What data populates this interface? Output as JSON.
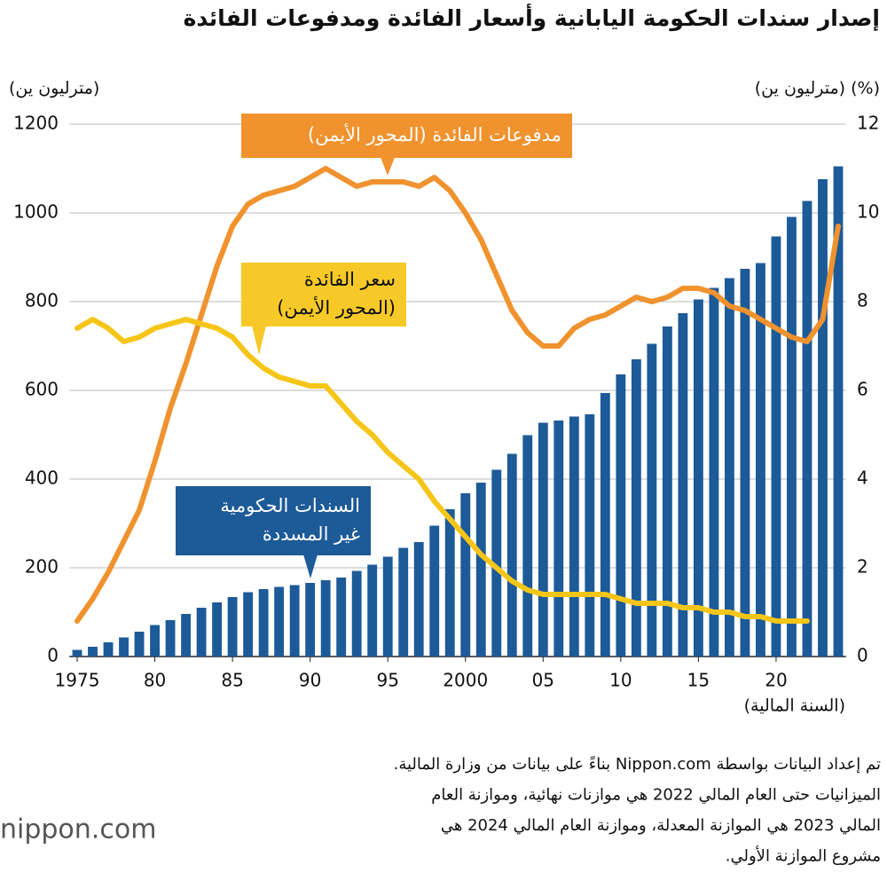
{
  "chart_data": {
    "type": "bar_line",
    "title": "إصدار سندات الحكومة اليابانية وأسعار الفائدة ومدفوعات الفائدة",
    "y_label": "(مترليون ين)",
    "y2_label": "(%) (مترليون ين)",
    "x_label": "(السنة المالية)",
    "x": [
      1975,
      1976,
      1977,
      1978,
      1979,
      1980,
      1981,
      1982,
      1983,
      1984,
      1985,
      1986,
      1987,
      1988,
      1989,
      1990,
      1991,
      1992,
      1993,
      1994,
      1995,
      1996,
      1997,
      1998,
      1999,
      2000,
      2001,
      2002,
      2003,
      2004,
      2005,
      2006,
      2007,
      2008,
      2009,
      2010,
      2011,
      2012,
      2013,
      2014,
      2015,
      2016,
      2017,
      2018,
      2019,
      2020,
      2021,
      2022,
      2023,
      2024
    ],
    "xlim": [
      1974.5,
      2024.5
    ],
    "xticks": [
      1975,
      {
        "value": 1980,
        "label": "80"
      },
      {
        "value": 1985,
        "label": "85"
      },
      {
        "value": 1990,
        "label": "90"
      },
      {
        "value": 1995,
        "label": "95"
      },
      2000,
      {
        "value": 2005,
        "label": "05"
      },
      {
        "value": 2010,
        "label": "10"
      },
      {
        "value": 2015,
        "label": "15"
      },
      {
        "value": 2020,
        "label": "20"
      }
    ],
    "ylim": [
      0,
      1200
    ],
    "yticks": [
      0,
      200,
      400,
      600,
      800,
      1000,
      1200
    ],
    "y2lim": [
      0,
      12
    ],
    "y2ticks": [
      0,
      2,
      4,
      6,
      8,
      10,
      12
    ],
    "grid": true,
    "series": [
      {
        "name": "السندات الحكومية\nغير المسددة",
        "type": "bar",
        "color": "#1d5a98",
        "axis": "y",
        "values": [
          15,
          22,
          32,
          43,
          56,
          71,
          82,
          96,
          110,
          122,
          134,
          145,
          152,
          157,
          161,
          166,
          172,
          178,
          193,
          207,
          225,
          245,
          258,
          295,
          332,
          368,
          392,
          421,
          457,
          499,
          527,
          532,
          541,
          546,
          594,
          636,
          670,
          705,
          744,
          774,
          805,
          831,
          853,
          874,
          887,
          947,
          991,
          1027,
          1076,
          1105
        ]
      },
      {
        "name": "مدفوعات الفائدة (المحور الأيمن)",
        "type": "line",
        "color": "#f0922e",
        "axis": "y2",
        "values": [
          0.8,
          1.3,
          1.9,
          2.6,
          3.3,
          4.4,
          5.6,
          6.6,
          7.7,
          8.8,
          9.7,
          10.2,
          10.4,
          10.5,
          10.6,
          10.8,
          11.0,
          10.8,
          10.6,
          10.7,
          10.7,
          10.7,
          10.6,
          10.8,
          10.5,
          10.0,
          9.4,
          8.6,
          7.8,
          7.3,
          7.0,
          7.0,
          7.4,
          7.6,
          7.7,
          7.9,
          8.1,
          8.0,
          8.1,
          8.3,
          8.3,
          8.2,
          7.9,
          7.8,
          7.6,
          7.4,
          7.2,
          7.1,
          7.6,
          9.7
        ]
      },
      {
        "name": "سعر الفائدة\n(المحور الأيمن)",
        "type": "line",
        "color": "#f5c518",
        "axis": "y2",
        "values": [
          7.4,
          7.6,
          7.4,
          7.1,
          7.2,
          7.4,
          7.5,
          7.6,
          7.5,
          7.4,
          7.2,
          6.8,
          6.5,
          6.3,
          6.2,
          6.1,
          6.1,
          5.7,
          5.3,
          5.0,
          4.6,
          4.3,
          4.0,
          3.5,
          3.1,
          2.7,
          2.3,
          2.0,
          1.7,
          1.5,
          1.4,
          1.4,
          1.4,
          1.4,
          1.4,
          1.3,
          1.2,
          1.2,
          1.2,
          1.1,
          1.1,
          1.0,
          1.0,
          0.9,
          0.9,
          0.8,
          0.8,
          0.8,
          null,
          null
        ]
      }
    ],
    "notes": [
      "تم إعداد البيانات بواسطة Nippon.com بناءً على بيانات من وزارة المالية.",
      "الميزانيات حتى العام المالي 2022 هي موازنات نهائية، وموازنة العام",
      "المالي 2023 هي الموازنة المعدلة، وموازنة العام المالي 2024 هي",
      "مشروع الموازنة الأولي."
    ],
    "logo": "nippon.com"
  }
}
